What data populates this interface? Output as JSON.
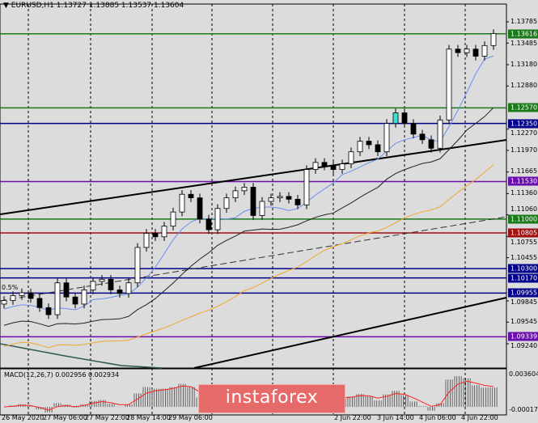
{
  "header": {
    "title": "EURUSD,H1  1.13727 1.13885 1.13537 1.13604",
    "toggle_icon": "triangle-down-icon"
  },
  "indicator": {
    "macd_label": "MACD(12,26,7) 0.002956 0.002934",
    "fib_label": "0.5%"
  },
  "brand": {
    "logo_text": "instaforex"
  },
  "colors": {
    "background": "#dcdcdc",
    "green_level": "#1a7a1a",
    "navy_level": "#00008b",
    "purple_level": "#6a0dad",
    "red_level": "#a01010",
    "ma_blue": "#6a8ff0",
    "ma_orange": "#f0a830",
    "macd_signal": "#ff2020"
  },
  "chart_data": {
    "type": "candlestick",
    "symbol": "EURUSD,H1",
    "ylim": [
      1.0922,
      1.1397
    ],
    "y_ticks": [
      "1.13785",
      "1.13485",
      "1.13180",
      "1.12880",
      "1.12270",
      "1.11970",
      "1.11665",
      "1.11360",
      "1.11060",
      "1.10755",
      "1.10455",
      "1.09845",
      "1.09545",
      "1.09240"
    ],
    "levels": [
      {
        "label": "1.13616",
        "value": 1.13616,
        "color": "#1a7a1a"
      },
      {
        "label": "1.12570",
        "value": 1.1257,
        "color": "#1a7a1a"
      },
      {
        "label": "1.12350",
        "value": 1.1235,
        "color": "#00008b"
      },
      {
        "label": "1.11530",
        "value": 1.1153,
        "color": "#6a0dad"
      },
      {
        "label": "1.11000",
        "value": 1.11,
        "color": "#1a7a1a"
      },
      {
        "label": "1.10805",
        "value": 1.10805,
        "color": "#a01010"
      },
      {
        "label": "1.10300",
        "value": 1.103,
        "color": "#00008b"
      },
      {
        "label": "1.10170",
        "value": 1.1017,
        "color": "#00008b"
      },
      {
        "label": "1.09955",
        "value": 1.09955,
        "color": "#00008b"
      },
      {
        "label": "1.09339",
        "value": 1.09339,
        "color": "#6a0dad"
      }
    ],
    "closes": [
      1.0985,
      1.0992,
      1.0996,
      1.0988,
      1.0975,
      1.0965,
      1.101,
      1.099,
      1.098,
      1.1,
      1.1012,
      1.1015,
      1.1,
      1.0995,
      1.101,
      1.106,
      1.108,
      1.1075,
      1.109,
      1.111,
      1.1135,
      1.113,
      1.11,
      1.1085,
      1.1115,
      1.113,
      1.114,
      1.1145,
      1.1105,
      1.1125,
      1.113,
      1.1132,
      1.1128,
      1.112,
      1.117,
      1.118,
      1.1175,
      1.117,
      1.1178,
      1.1195,
      1.121,
      1.1205,
      1.1195,
      1.1235,
      1.125,
      1.1235,
      1.122,
      1.1212,
      1.12,
      1.124,
      1.134,
      1.1335,
      1.134,
      1.133,
      1.1345,
      1.1362
    ],
    "macd_ticks": [
      "0.003604",
      "-0.000175"
    ],
    "x_ticks": [
      "26 May 2020",
      "27 May 06:00",
      "27 May 22:00",
      "28 May 14:00",
      "29 May 06:00",
      "2 Jun 22:00",
      "3 Jun 14:00",
      "4 Jun 06:00",
      "4 Jun 22:00"
    ]
  }
}
